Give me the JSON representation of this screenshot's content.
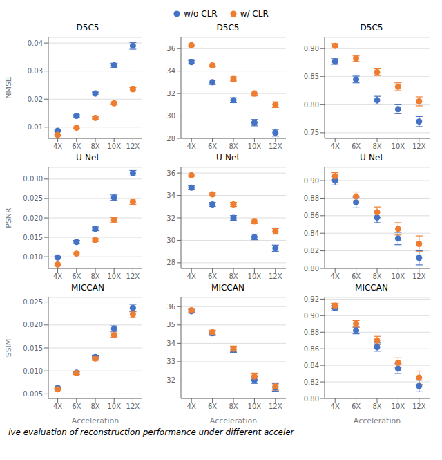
{
  "chart_data": [
    {
      "type": "scatter",
      "title": "D5C5",
      "y_label": "NMSE",
      "legend": "top",
      "grid": true,
      "x": [
        4,
        6,
        8,
        10,
        12
      ],
      "xlim": [
        3,
        13
      ],
      "xticks": [
        {
          "value": 4,
          "label": "4X"
        },
        {
          "value": 6,
          "label": "6X"
        },
        {
          "value": 8,
          "label": "8X"
        },
        {
          "value": 10,
          "label": "10X"
        },
        {
          "value": 12,
          "label": "12X"
        }
      ],
      "ylim": [
        0.006,
        0.042
      ],
      "yticks": [
        0.01,
        0.02,
        0.03,
        0.04
      ],
      "series": [
        {
          "name": "w/o CLR",
          "color": "#4472C4",
          "marker": "o",
          "values": [
            0.0087,
            0.014,
            0.022,
            0.032,
            0.039
          ],
          "errors": [
            0.0003,
            0.0004,
            0.0005,
            0.0008,
            0.0012
          ]
        },
        {
          "name": "w/ CLR",
          "color": "#ED7D31",
          "marker": "o",
          "values": [
            0.0072,
            0.0098,
            0.0133,
            0.0185,
            0.0235
          ],
          "errors": [
            0.0002,
            0.0003,
            0.0004,
            0.0005,
            0.0006
          ]
        }
      ]
    },
    {
      "type": "scatter",
      "title": "D5C5",
      "grid": true,
      "x": [
        4,
        6,
        8,
        10,
        12
      ],
      "xlim": [
        3,
        13
      ],
      "xticks": [
        {
          "value": 4,
          "label": "4X"
        },
        {
          "value": 6,
          "label": "6X"
        },
        {
          "value": 8,
          "label": "8X"
        },
        {
          "value": 10,
          "label": "10X"
        },
        {
          "value": 12,
          "label": "12X"
        }
      ],
      "ylim": [
        28,
        37
      ],
      "yticks": [
        28,
        30,
        32,
        34,
        36
      ],
      "series": [
        {
          "name": "w/o CLR",
          "color": "#4472C4",
          "marker": "o",
          "values": [
            34.8,
            33.0,
            31.4,
            29.4,
            28.5
          ],
          "errors": [
            0.15,
            0.2,
            0.22,
            0.28,
            0.3
          ]
        },
        {
          "name": "w/ CLR",
          "color": "#ED7D31",
          "marker": "o",
          "values": [
            36.3,
            34.5,
            33.3,
            32.0,
            31.0
          ],
          "errors": [
            0.1,
            0.12,
            0.18,
            0.22,
            0.25
          ]
        }
      ]
    },
    {
      "type": "scatter",
      "title": "D5C5",
      "grid": true,
      "x": [
        4,
        6,
        8,
        10,
        12
      ],
      "xlim": [
        3,
        13
      ],
      "xticks": [
        {
          "value": 4,
          "label": "4X"
        },
        {
          "value": 6,
          "label": "6X"
        },
        {
          "value": 8,
          "label": "8X"
        },
        {
          "value": 10,
          "label": "10X"
        },
        {
          "value": 12,
          "label": "12X"
        }
      ],
      "ylim": [
        0.74,
        0.92
      ],
      "yticks": [
        0.75,
        {
          "value": 0.8,
          "label": "0.80"
        },
        0.85,
        {
          "value": 0.9,
          "label": "0.90"
        }
      ],
      "series": [
        {
          "name": "w/o CLR",
          "color": "#4472C4",
          "marker": "o",
          "values": [
            0.877,
            0.845,
            0.808,
            0.792,
            0.77
          ],
          "errors": [
            0.005,
            0.006,
            0.007,
            0.008,
            0.009
          ]
        },
        {
          "name": "w/ CLR",
          "color": "#ED7D31",
          "marker": "o",
          "values": [
            0.905,
            0.882,
            0.858,
            0.832,
            0.806
          ],
          "errors": [
            0.004,
            0.005,
            0.006,
            0.007,
            0.008
          ]
        }
      ]
    },
    {
      "type": "scatter",
      "title": "U-Net",
      "y_label": "PSNR",
      "grid": true,
      "x": [
        4,
        6,
        8,
        10,
        12
      ],
      "xlim": [
        3,
        13
      ],
      "xticks": [
        {
          "value": 4,
          "label": "4X"
        },
        {
          "value": 6,
          "label": "6X"
        },
        {
          "value": 8,
          "label": "8X"
        },
        {
          "value": 10,
          "label": "10X"
        },
        {
          "value": 12,
          "label": "12X"
        }
      ],
      "ylim": [
        0.007,
        0.033
      ],
      "yticks": [
        {
          "value": 0.01,
          "label": "0.010"
        },
        0.015,
        {
          "value": 0.02,
          "label": "0.020"
        },
        0.025,
        {
          "value": 0.03,
          "label": "0.030"
        }
      ],
      "series": [
        {
          "name": "w/o CLR",
          "color": "#4472C4",
          "marker": "o",
          "values": [
            0.0098,
            0.0138,
            0.0172,
            0.0252,
            0.0315
          ],
          "errors": [
            0.0003,
            0.0004,
            0.0005,
            0.0007,
            0.0007
          ]
        },
        {
          "name": "w/ CLR",
          "color": "#ED7D31",
          "marker": "o",
          "values": [
            0.008,
            0.0108,
            0.0143,
            0.0195,
            0.0242
          ],
          "errors": [
            0.0002,
            0.0003,
            0.0004,
            0.0006,
            0.0007
          ]
        }
      ]
    },
    {
      "type": "scatter",
      "title": "U-Net",
      "grid": true,
      "x": [
        4,
        6,
        8,
        10,
        12
      ],
      "xlim": [
        3,
        13
      ],
      "xticks": [
        {
          "value": 4,
          "label": "4X"
        },
        {
          "value": 6,
          "label": "6X"
        },
        {
          "value": 8,
          "label": "8X"
        },
        {
          "value": 10,
          "label": "10X"
        },
        {
          "value": 12,
          "label": "12X"
        }
      ],
      "ylim": [
        27.5,
        36.5
      ],
      "yticks": [
        28,
        30,
        32,
        34,
        36
      ],
      "series": [
        {
          "name": "w/o CLR",
          "color": "#4472C4",
          "marker": "o",
          "values": [
            34.7,
            33.2,
            32.0,
            30.3,
            29.3
          ],
          "errors": [
            0.15,
            0.18,
            0.2,
            0.25,
            0.28
          ]
        },
        {
          "name": "w/ CLR",
          "color": "#ED7D31",
          "marker": "o",
          "values": [
            35.8,
            34.1,
            33.2,
            31.7,
            30.8
          ],
          "errors": [
            0.1,
            0.12,
            0.18,
            0.22,
            0.25
          ]
        }
      ]
    },
    {
      "type": "scatter",
      "title": "U-Net",
      "grid": true,
      "x": [
        4,
        6,
        8,
        10,
        12
      ],
      "xlim": [
        3,
        13
      ],
      "xticks": [
        {
          "value": 4,
          "label": "4X"
        },
        {
          "value": 6,
          "label": "6X"
        },
        {
          "value": 8,
          "label": "8X"
        },
        {
          "value": 10,
          "label": "10X"
        },
        {
          "value": 12,
          "label": "12X"
        }
      ],
      "ylim": [
        0.8,
        0.915
      ],
      "yticks": [
        {
          "value": 0.8,
          "label": "0.80"
        },
        0.82,
        0.84,
        0.86,
        0.88,
        {
          "value": 0.9,
          "label": "0.90"
        }
      ],
      "series": [
        {
          "name": "w/o CLR",
          "color": "#4472C4",
          "marker": "o",
          "values": [
            0.9,
            0.875,
            0.858,
            0.834,
            0.812
          ],
          "errors": [
            0.005,
            0.006,
            0.006,
            0.007,
            0.008
          ]
        },
        {
          "name": "w/ CLR",
          "color": "#ED7D31",
          "marker": "o",
          "values": [
            0.905,
            0.882,
            0.864,
            0.845,
            0.828
          ],
          "errors": [
            0.004,
            0.005,
            0.006,
            0.007,
            0.009
          ]
        }
      ]
    },
    {
      "type": "scatter",
      "title": "MICCAN",
      "y_label": "SSIM",
      "x_label": "Acceleration",
      "grid": true,
      "annotations": [
        "ive evaluation of reconstruction performance under different acceler"
      ],
      "x": [
        4,
        6,
        8,
        10,
        12
      ],
      "xlim": [
        3,
        13
      ],
      "xticks": [
        {
          "value": 4,
          "label": "4X"
        },
        {
          "value": 6,
          "label": "6X"
        },
        {
          "value": 8,
          "label": "8X"
        },
        {
          "value": 10,
          "label": "10X"
        },
        {
          "value": 12,
          "label": "12X"
        }
      ],
      "ylim": [
        0.004,
        0.026
      ],
      "yticks": [
        0.005,
        {
          "value": 0.01,
          "label": "0.010"
        },
        0.015,
        {
          "value": 0.02,
          "label": "0.020"
        },
        0.025
      ],
      "series": [
        {
          "name": "w/o CLR",
          "color": "#4472C4",
          "marker": "o",
          "values": [
            0.0063,
            0.0096,
            0.013,
            0.0192,
            0.0237
          ],
          "errors": [
            0.0002,
            0.0003,
            0.0004,
            0.0006,
            0.0008
          ]
        },
        {
          "name": "w/ CLR",
          "color": "#ED7D31",
          "marker": "o",
          "values": [
            0.006,
            0.0095,
            0.0127,
            0.0178,
            0.0223
          ],
          "errors": [
            0.0002,
            0.0003,
            0.0004,
            0.0005,
            0.0007
          ]
        }
      ]
    },
    {
      "type": "scatter",
      "title": "MICCAN",
      "x_label": "Acceleration",
      "grid": true,
      "x": [
        4,
        6,
        8,
        10,
        12
      ],
      "xlim": [
        3,
        13
      ],
      "xticks": [
        {
          "value": 4,
          "label": "4X"
        },
        {
          "value": 6,
          "label": "6X"
        },
        {
          "value": 8,
          "label": "8X"
        },
        {
          "value": 10,
          "label": "10X"
        },
        {
          "value": 12,
          "label": "12X"
        }
      ],
      "ylim": [
        31.0,
        36.5
      ],
      "yticks": [
        32,
        33,
        34,
        35,
        36
      ],
      "series": [
        {
          "name": "w/o CLR",
          "color": "#4472C4",
          "marker": "o",
          "values": [
            35.75,
            34.55,
            33.65,
            32.0,
            31.6
          ],
          "errors": [
            0.1,
            0.12,
            0.15,
            0.18,
            0.2
          ]
        },
        {
          "name": "w/ CLR",
          "color": "#ED7D31",
          "marker": "o",
          "values": [
            35.8,
            34.6,
            33.7,
            32.2,
            31.65
          ],
          "errors": [
            0.1,
            0.12,
            0.15,
            0.18,
            0.2
          ]
        }
      ]
    },
    {
      "type": "scatter",
      "title": "MICCAN",
      "x_label": "Acceleration",
      "grid": true,
      "x": [
        4,
        6,
        8,
        10,
        12
      ],
      "xlim": [
        3,
        13
      ],
      "xticks": [
        {
          "value": 4,
          "label": "4X"
        },
        {
          "value": 6,
          "label": "6X"
        },
        {
          "value": 8,
          "label": "8X"
        },
        {
          "value": 10,
          "label": "10X"
        },
        {
          "value": 12,
          "label": "12X"
        }
      ],
      "ylim": [
        0.8,
        0.922
      ],
      "yticks": [
        {
          "value": 0.8,
          "label": "0.80"
        },
        0.82,
        0.84,
        0.86,
        0.88,
        {
          "value": 0.9,
          "label": "0.90"
        },
        0.92
      ],
      "series": [
        {
          "name": "w/o CLR",
          "color": "#4472C4",
          "marker": "o",
          "values": [
            0.909,
            0.882,
            0.862,
            0.836,
            0.815
          ],
          "errors": [
            0.003,
            0.004,
            0.005,
            0.006,
            0.007
          ]
        },
        {
          "name": "w/ CLR",
          "color": "#ED7D31",
          "marker": "o",
          "values": [
            0.912,
            0.89,
            0.87,
            0.843,
            0.825
          ],
          "errors": [
            0.003,
            0.004,
            0.005,
            0.006,
            0.008
          ]
        }
      ]
    }
  ]
}
